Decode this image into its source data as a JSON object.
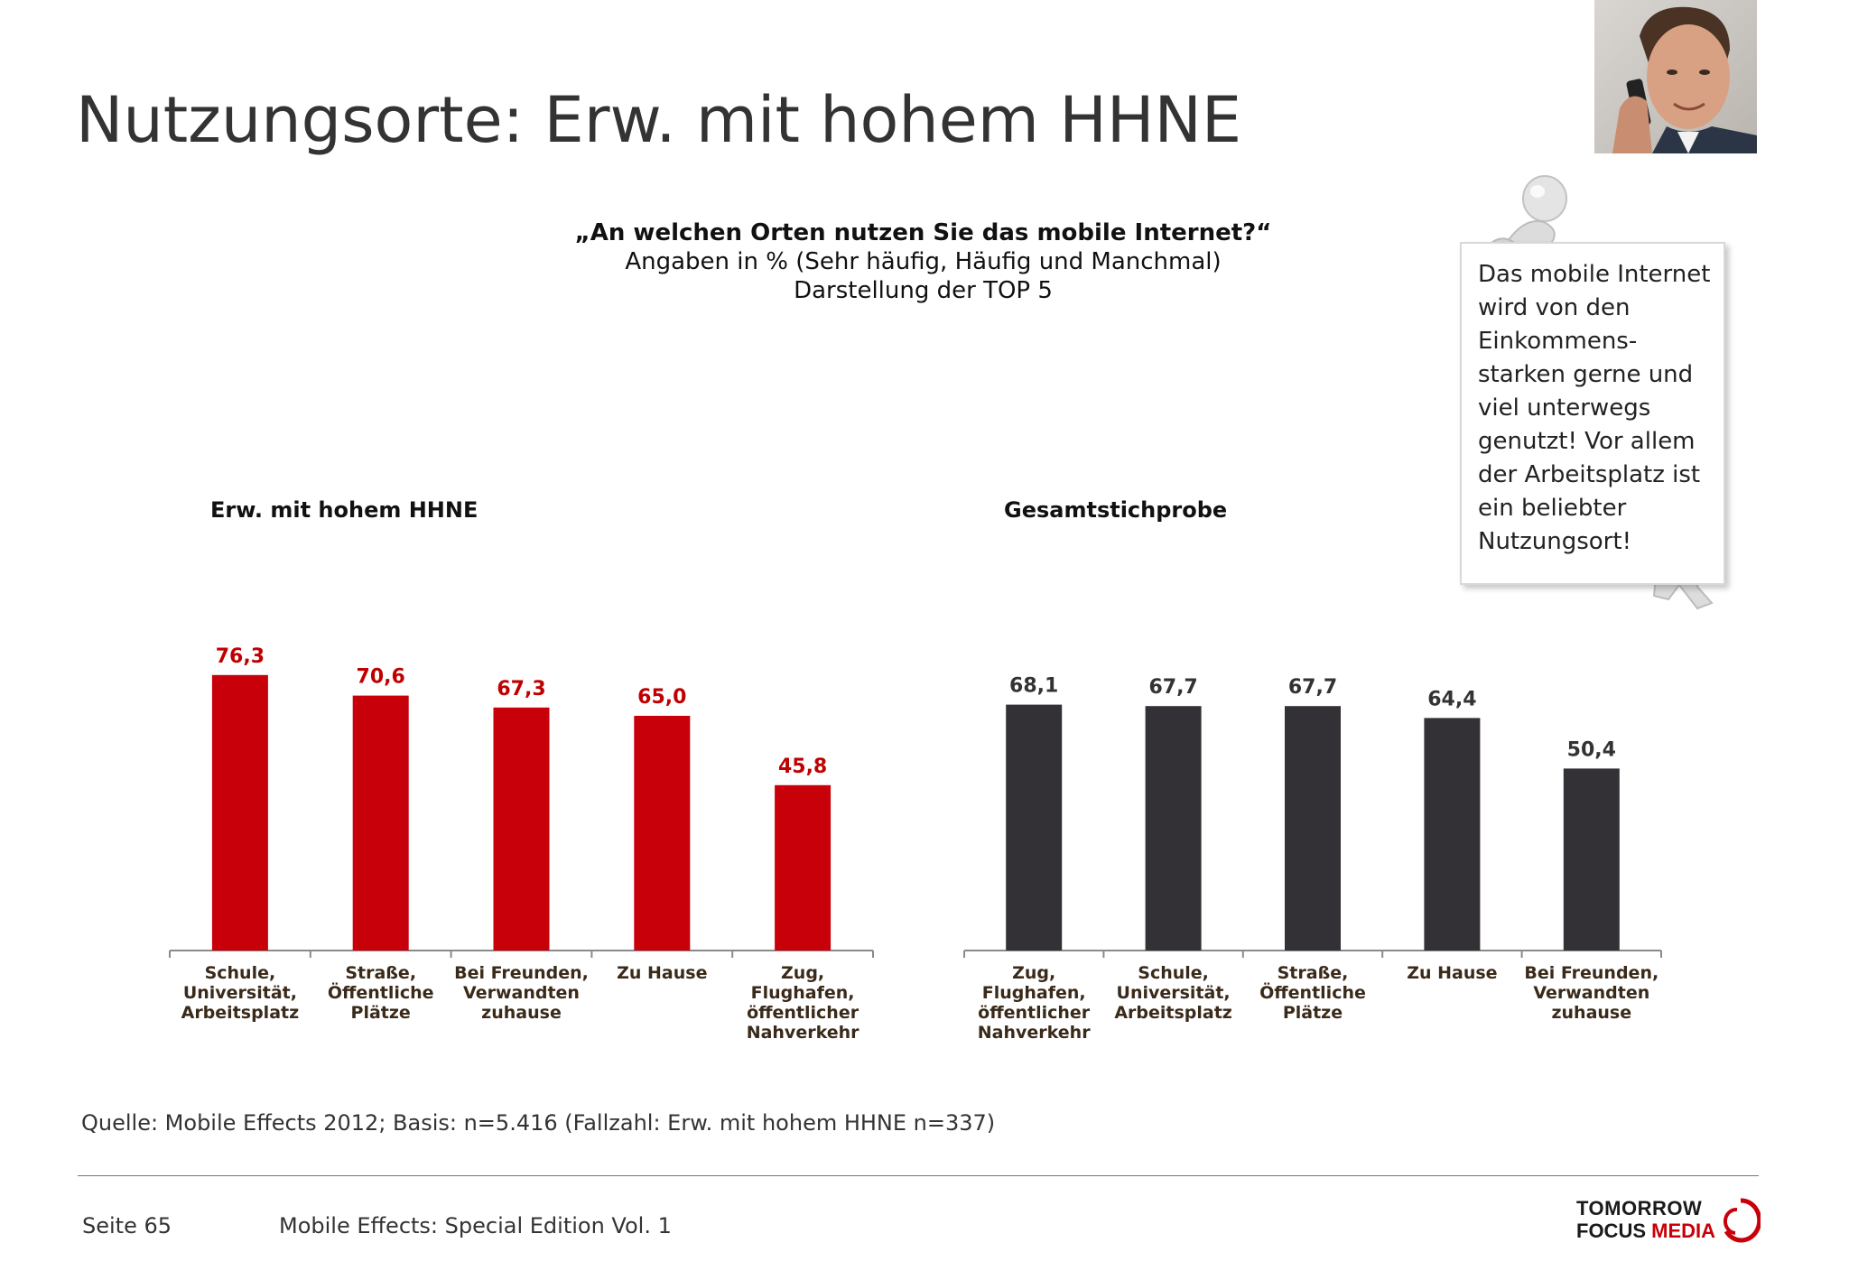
{
  "title": "Nutzungsorte: Erw. mit hohem HHNE",
  "question": {
    "line1": "„An welchen Orten nutzen Sie das mobile Internet?“",
    "line2": "Angaben in % (Sehr häufig, Häufig und Manchmal)",
    "line3": "Darstellung der TOP 5"
  },
  "note": "Das mobile Internet wird von den Einkommens-starken gerne und viel unterwegs genutzt! Vor allem der Arbeitsplatz ist ein beliebter Nutzungsort!",
  "source": "Quelle: Mobile Effects 2012; Basis: n=5.416 (Fallzahl: Erw. mit hohem HHNE n=337)",
  "footer": {
    "page": "Seite 65",
    "publication": "Mobile Effects: Special Edition Vol. 1"
  },
  "logo": {
    "line1": "TOMORROW",
    "line2a": "FOCUS",
    "line2b": "MEDIA"
  },
  "colors": {
    "red": "#c8000a",
    "dark": "#333135",
    "red_label": "#c00000"
  },
  "chart_data": [
    {
      "type": "bar",
      "title": "Erw. mit hohem HHNE",
      "categories": [
        "Schule, Universität, Arbeitsplatz",
        "Straße, Öffentliche Plätze",
        "Bei Freunden, Verwandten zuhause",
        "Zu Hause",
        "Zug, Flughafen, öffentlicher Nahverkehr"
      ],
      "category_lines": [
        [
          "Schule,",
          "Universität,",
          "Arbeitsplatz"
        ],
        [
          "Straße,",
          "Öffentliche",
          "Plätze"
        ],
        [
          "Bei Freunden,",
          "Verwandten",
          "zuhause"
        ],
        [
          "Zu Hause"
        ],
        [
          "Zug,",
          "Flughafen,",
          "öffentlicher",
          "Nahverkehr"
        ]
      ],
      "values": [
        76.3,
        70.6,
        67.3,
        65.0,
        45.8
      ],
      "value_labels": [
        "76,3",
        "70,6",
        "67,3",
        "65,0",
        "45,8"
      ],
      "ylim": [
        0,
        100
      ],
      "grid": false,
      "color": "#c8000a"
    },
    {
      "type": "bar",
      "title": "Gesamtstichprobe",
      "categories": [
        "Zug, Flughafen, öffentlicher Nahverkehr",
        "Schule, Universität, Arbeitsplatz",
        "Straße, Öffentliche Plätze",
        "Zu Hause",
        "Bei Freunden, Verwandten zuhause"
      ],
      "category_lines": [
        [
          "Zug,",
          "Flughafen,",
          "öffentlicher",
          "Nahverkehr"
        ],
        [
          "Schule,",
          "Universität,",
          "Arbeitsplatz"
        ],
        [
          "Straße,",
          "Öffentliche",
          "Plätze"
        ],
        [
          "Zu Hause"
        ],
        [
          "Bei Freunden,",
          "Verwandten",
          "zuhause"
        ]
      ],
      "values": [
        68.1,
        67.7,
        67.7,
        64.4,
        50.4
      ],
      "value_labels": [
        "68,1",
        "67,7",
        "67,7",
        "64,4",
        "50,4"
      ],
      "ylim": [
        0,
        100
      ],
      "grid": false,
      "color": "#333135"
    }
  ]
}
